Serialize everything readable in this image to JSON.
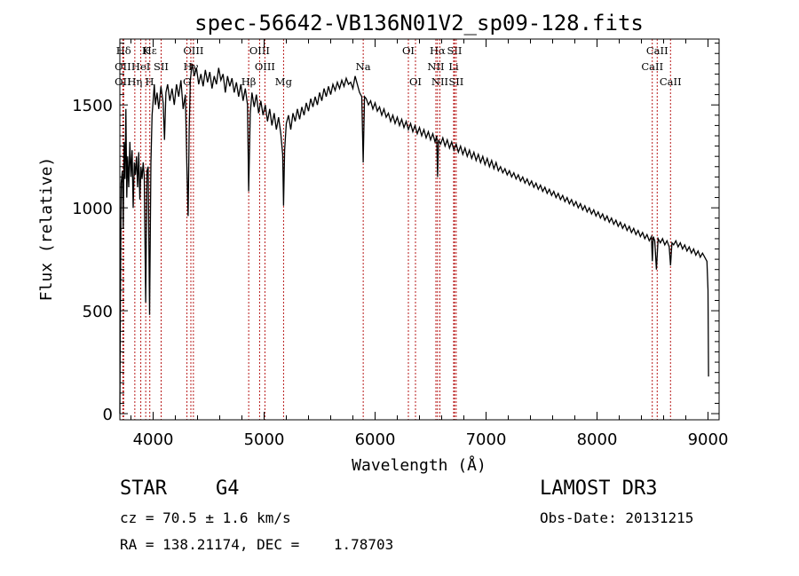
{
  "chart_data": {
    "type": "line",
    "title": "spec-56642-VB136N01V2_sp09-128.fits",
    "xlabel": "Wavelength (Å)",
    "ylabel": "Flux (relative)",
    "xlim": [
      3700,
      9100
    ],
    "ylim": [
      -30,
      1820
    ],
    "x_ticks": [
      4000,
      5000,
      6000,
      7000,
      8000,
      9000
    ],
    "y_ticks": [
      0,
      500,
      1000,
      1500
    ],
    "spectrum": [
      [
        3700,
        0
      ],
      [
        3705,
        520
      ],
      [
        3712,
        1120
      ],
      [
        3722,
        1180
      ],
      [
        3730,
        900
      ],
      [
        3738,
        1320
      ],
      [
        3746,
        1140
      ],
      [
        3754,
        1480
      ],
      [
        3762,
        1050
      ],
      [
        3770,
        1250
      ],
      [
        3780,
        1100
      ],
      [
        3790,
        1320
      ],
      [
        3800,
        1150
      ],
      [
        3810,
        1280
      ],
      [
        3820,
        1000
      ],
      [
        3830,
        1220
      ],
      [
        3840,
        1160
      ],
      [
        3850,
        1250
      ],
      [
        3860,
        1100
      ],
      [
        3870,
        1270
      ],
      [
        3880,
        1040
      ],
      [
        3890,
        1200
      ],
      [
        3900,
        1140
      ],
      [
        3910,
        1220
      ],
      [
        3920,
        1150
      ],
      [
        3933,
        540
      ],
      [
        3945,
        1180
      ],
      [
        3955,
        1200
      ],
      [
        3968,
        480
      ],
      [
        3980,
        1220
      ],
      [
        3990,
        1450
      ],
      [
        4000,
        1520
      ],
      [
        4010,
        1600
      ],
      [
        4020,
        1500
      ],
      [
        4035,
        1560
      ],
      [
        4050,
        1480
      ],
      [
        4070,
        1590
      ],
      [
        4090,
        1510
      ],
      [
        4102,
        1330
      ],
      [
        4115,
        1560
      ],
      [
        4130,
        1600
      ],
      [
        4150,
        1520
      ],
      [
        4170,
        1580
      ],
      [
        4190,
        1500
      ],
      [
        4210,
        1600
      ],
      [
        4230,
        1540
      ],
      [
        4250,
        1620
      ],
      [
        4270,
        1480
      ],
      [
        4290,
        1550
      ],
      [
        4305,
        1180
      ],
      [
        4315,
        960
      ],
      [
        4325,
        1380
      ],
      [
        4335,
        1620
      ],
      [
        4350,
        1700
      ],
      [
        4370,
        1640
      ],
      [
        4390,
        1680
      ],
      [
        4410,
        1600
      ],
      [
        4430,
        1650
      ],
      [
        4450,
        1590
      ],
      [
        4470,
        1670
      ],
      [
        4490,
        1610
      ],
      [
        4510,
        1660
      ],
      [
        4530,
        1580
      ],
      [
        4550,
        1640
      ],
      [
        4570,
        1600
      ],
      [
        4590,
        1680
      ],
      [
        4610,
        1620
      ],
      [
        4630,
        1650
      ],
      [
        4650,
        1560
      ],
      [
        4670,
        1640
      ],
      [
        4690,
        1590
      ],
      [
        4710,
        1630
      ],
      [
        4730,
        1560
      ],
      [
        4750,
        1610
      ],
      [
        4770,
        1540
      ],
      [
        4790,
        1600
      ],
      [
        4810,
        1520
      ],
      [
        4830,
        1580
      ],
      [
        4850,
        1500
      ],
      [
        4861,
        1080
      ],
      [
        4875,
        1460
      ],
      [
        4890,
        1560
      ],
      [
        4910,
        1490
      ],
      [
        4930,
        1550
      ],
      [
        4950,
        1460
      ],
      [
        4970,
        1520
      ],
      [
        4990,
        1450
      ],
      [
        5010,
        1500
      ],
      [
        5030,
        1420
      ],
      [
        5050,
        1480
      ],
      [
        5070,
        1400
      ],
      [
        5090,
        1460
      ],
      [
        5110,
        1380
      ],
      [
        5130,
        1440
      ],
      [
        5150,
        1360
      ],
      [
        5167,
        1260
      ],
      [
        5175,
        1010
      ],
      [
        5185,
        1280
      ],
      [
        5200,
        1410
      ],
      [
        5220,
        1450
      ],
      [
        5240,
        1380
      ],
      [
        5260,
        1460
      ],
      [
        5280,
        1420
      ],
      [
        5300,
        1480
      ],
      [
        5320,
        1430
      ],
      [
        5340,
        1490
      ],
      [
        5360,
        1450
      ],
      [
        5380,
        1510
      ],
      [
        5400,
        1470
      ],
      [
        5420,
        1530
      ],
      [
        5440,
        1490
      ],
      [
        5460,
        1540
      ],
      [
        5480,
        1500
      ],
      [
        5500,
        1560
      ],
      [
        5520,
        1520
      ],
      [
        5540,
        1580
      ],
      [
        5560,
        1540
      ],
      [
        5580,
        1590
      ],
      [
        5600,
        1550
      ],
      [
        5620,
        1600
      ],
      [
        5640,
        1570
      ],
      [
        5660,
        1610
      ],
      [
        5680,
        1580
      ],
      [
        5700,
        1620
      ],
      [
        5720,
        1590
      ],
      [
        5740,
        1630
      ],
      [
        5760,
        1600
      ],
      [
        5780,
        1610
      ],
      [
        5800,
        1580
      ],
      [
        5820,
        1640
      ],
      [
        5840,
        1600
      ],
      [
        5860,
        1560
      ],
      [
        5880,
        1540
      ],
      [
        5893,
        1220
      ],
      [
        5905,
        1540
      ],
      [
        5920,
        1530
      ],
      [
        5940,
        1500
      ],
      [
        5960,
        1520
      ],
      [
        5980,
        1480
      ],
      [
        6000,
        1510
      ],
      [
        6020,
        1470
      ],
      [
        6040,
        1490
      ],
      [
        6060,
        1450
      ],
      [
        6080,
        1480
      ],
      [
        6100,
        1440
      ],
      [
        6120,
        1460
      ],
      [
        6140,
        1420
      ],
      [
        6160,
        1450
      ],
      [
        6180,
        1410
      ],
      [
        6200,
        1440
      ],
      [
        6220,
        1400
      ],
      [
        6240,
        1430
      ],
      [
        6260,
        1390
      ],
      [
        6280,
        1420
      ],
      [
        6300,
        1380
      ],
      [
        6320,
        1410
      ],
      [
        6340,
        1370
      ],
      [
        6360,
        1400
      ],
      [
        6380,
        1360
      ],
      [
        6400,
        1390
      ],
      [
        6420,
        1350
      ],
      [
        6440,
        1380
      ],
      [
        6460,
        1340
      ],
      [
        6480,
        1370
      ],
      [
        6500,
        1330
      ],
      [
        6520,
        1360
      ],
      [
        6540,
        1320
      ],
      [
        6555,
        1350
      ],
      [
        6563,
        1150
      ],
      [
        6572,
        1330
      ],
      [
        6590,
        1310
      ],
      [
        6610,
        1340
      ],
      [
        6630,
        1300
      ],
      [
        6650,
        1330
      ],
      [
        6670,
        1290
      ],
      [
        6690,
        1320
      ],
      [
        6710,
        1280
      ],
      [
        6730,
        1310
      ],
      [
        6750,
        1270
      ],
      [
        6770,
        1300
      ],
      [
        6790,
        1260
      ],
      [
        6810,
        1290
      ],
      [
        6830,
        1250
      ],
      [
        6850,
        1280
      ],
      [
        6870,
        1240
      ],
      [
        6890,
        1270
      ],
      [
        6910,
        1230
      ],
      [
        6930,
        1260
      ],
      [
        6950,
        1220
      ],
      [
        6970,
        1250
      ],
      [
        6990,
        1210
      ],
      [
        7010,
        1240
      ],
      [
        7030,
        1200
      ],
      [
        7050,
        1230
      ],
      [
        7070,
        1190
      ],
      [
        7090,
        1220
      ],
      [
        7110,
        1180
      ],
      [
        7130,
        1200
      ],
      [
        7150,
        1170
      ],
      [
        7170,
        1190
      ],
      [
        7190,
        1160
      ],
      [
        7210,
        1180
      ],
      [
        7230,
        1150
      ],
      [
        7250,
        1170
      ],
      [
        7270,
        1140
      ],
      [
        7290,
        1160
      ],
      [
        7310,
        1130
      ],
      [
        7330,
        1150
      ],
      [
        7350,
        1120
      ],
      [
        7370,
        1140
      ],
      [
        7390,
        1110
      ],
      [
        7410,
        1130
      ],
      [
        7430,
        1100
      ],
      [
        7450,
        1120
      ],
      [
        7470,
        1090
      ],
      [
        7490,
        1110
      ],
      [
        7510,
        1080
      ],
      [
        7530,
        1100
      ],
      [
        7550,
        1070
      ],
      [
        7570,
        1090
      ],
      [
        7590,
        1060
      ],
      [
        7610,
        1080
      ],
      [
        7630,
        1050
      ],
      [
        7650,
        1070
      ],
      [
        7670,
        1040
      ],
      [
        7690,
        1060
      ],
      [
        7710,
        1030
      ],
      [
        7730,
        1050
      ],
      [
        7750,
        1020
      ],
      [
        7770,
        1040
      ],
      [
        7790,
        1010
      ],
      [
        7810,
        1030
      ],
      [
        7830,
        1000
      ],
      [
        7850,
        1020
      ],
      [
        7870,
        990
      ],
      [
        7890,
        1010
      ],
      [
        7910,
        980
      ],
      [
        7930,
        1000
      ],
      [
        7950,
        970
      ],
      [
        7970,
        990
      ],
      [
        7990,
        960
      ],
      [
        8010,
        980
      ],
      [
        8030,
        950
      ],
      [
        8050,
        970
      ],
      [
        8070,
        940
      ],
      [
        8090,
        960
      ],
      [
        8110,
        930
      ],
      [
        8130,
        950
      ],
      [
        8150,
        920
      ],
      [
        8170,
        940
      ],
      [
        8190,
        910
      ],
      [
        8210,
        930
      ],
      [
        8230,
        900
      ],
      [
        8250,
        920
      ],
      [
        8270,
        890
      ],
      [
        8290,
        910
      ],
      [
        8310,
        880
      ],
      [
        8330,
        900
      ],
      [
        8350,
        870
      ],
      [
        8370,
        890
      ],
      [
        8390,
        860
      ],
      [
        8410,
        880
      ],
      [
        8430,
        850
      ],
      [
        8450,
        870
      ],
      [
        8470,
        840
      ],
      [
        8490,
        860
      ],
      [
        8498,
        740
      ],
      [
        8506,
        860
      ],
      [
        8520,
        840
      ],
      [
        8535,
        700
      ],
      [
        8550,
        850
      ],
      [
        8570,
        830
      ],
      [
        8590,
        850
      ],
      [
        8610,
        820
      ],
      [
        8630,
        840
      ],
      [
        8650,
        810
      ],
      [
        8662,
        720
      ],
      [
        8675,
        830
      ],
      [
        8690,
        820
      ],
      [
        8710,
        840
      ],
      [
        8730,
        810
      ],
      [
        8750,
        830
      ],
      [
        8770,
        800
      ],
      [
        8790,
        820
      ],
      [
        8810,
        790
      ],
      [
        8830,
        810
      ],
      [
        8850,
        780
      ],
      [
        8870,
        800
      ],
      [
        8890,
        770
      ],
      [
        8910,
        790
      ],
      [
        8930,
        760
      ],
      [
        8950,
        780
      ],
      [
        8970,
        760
      ],
      [
        8990,
        740
      ],
      [
        9000,
        600
      ],
      [
        9005,
        180
      ]
    ],
    "lines": [
      {
        "name": "Hδ",
        "x": 3734,
        "row": 0
      },
      {
        "name": "OII",
        "x": 3727,
        "row": 1
      },
      {
        "name": "OII",
        "x": 3727,
        "row": 2
      },
      {
        "name": "K",
        "x": 3933,
        "row": 0
      },
      {
        "name": "HeI",
        "x": 3889,
        "row": 1
      },
      {
        "name": "Hη",
        "x": 3835,
        "row": 2
      },
      {
        "name": "Hε",
        "x": 3970,
        "row": 0
      },
      {
        "name": "SII",
        "x": 4072,
        "row": 1
      },
      {
        "name": "H",
        "x": 3968,
        "row": 2
      },
      {
        "name": "OIII",
        "x": 4363,
        "row": 0
      },
      {
        "name": "Hγ",
        "x": 4340,
        "row": 1
      },
      {
        "name": "G",
        "x": 4305,
        "row": 2
      },
      {
        "name": "Hβ",
        "x": 4861,
        "row": 2
      },
      {
        "name": "OIII",
        "x": 4959,
        "row": 0
      },
      {
        "name": "OIII",
        "x": 5007,
        "row": 1
      },
      {
        "name": "Mg",
        "x": 5175,
        "row": 2
      },
      {
        "name": "Na",
        "x": 5893,
        "row": 1
      },
      {
        "name": "OI",
        "x": 6300,
        "row": 0
      },
      {
        "name": "OI",
        "x": 6364,
        "row": 2
      },
      {
        "name": "Hα",
        "x": 6563,
        "row": 0
      },
      {
        "name": "SII",
        "x": 6716,
        "row": 0
      },
      {
        "name": "NII",
        "x": 6548,
        "row": 1
      },
      {
        "name": "Li",
        "x": 6708,
        "row": 1
      },
      {
        "name": "NII",
        "x": 6584,
        "row": 2
      },
      {
        "name": "SII",
        "x": 6731,
        "row": 2
      },
      {
        "name": "CaII",
        "x": 8542,
        "row": 0
      },
      {
        "name": "CaII",
        "x": 8498,
        "row": 1
      },
      {
        "name": "CaII",
        "x": 8662,
        "row": 2
      }
    ],
    "line_color": "#b00000"
  },
  "info": {
    "class": "STAR",
    "subclass": "G4",
    "survey": "LAMOST DR3",
    "cz": "cz = 70.5 ± 1.6 km/s",
    "obs_date": "Obs-Date: 20131215",
    "coords": "RA = 138.21174, DEC =    1.78703"
  }
}
